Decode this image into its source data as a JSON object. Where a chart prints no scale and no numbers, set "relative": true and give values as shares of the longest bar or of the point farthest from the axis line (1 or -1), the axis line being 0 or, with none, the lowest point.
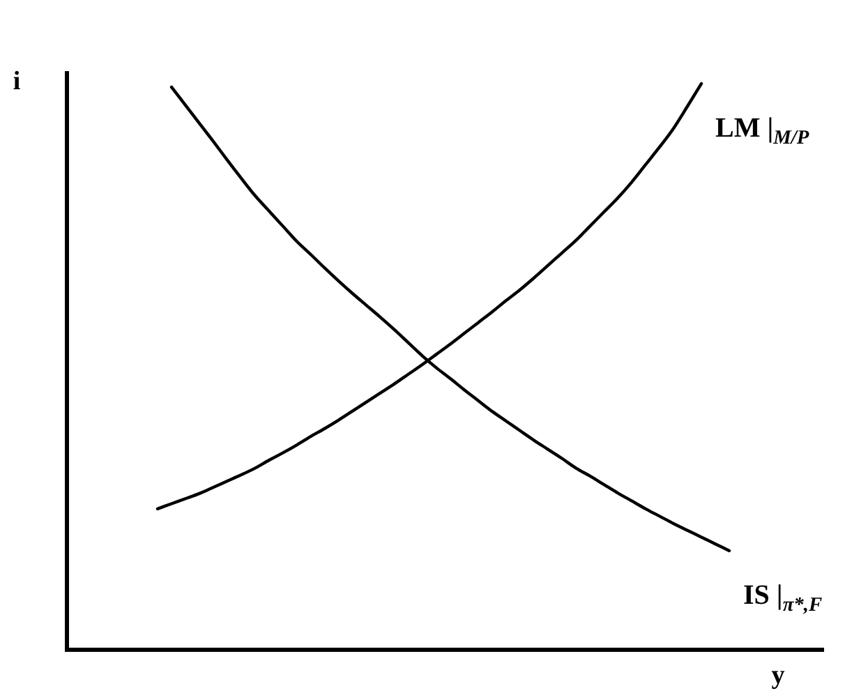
{
  "chart_data": {
    "type": "line",
    "relative": true,
    "xlabel": "y",
    "ylabel": "i",
    "categories": [
      null,
      null,
      null,
      null,
      null,
      null,
      null,
      null,
      null,
      null,
      null,
      null,
      null,
      null,
      null,
      null,
      null,
      null,
      null,
      null,
      null,
      null,
      null,
      null,
      null,
      null,
      null,
      null,
      null,
      null,
      null,
      null,
      null,
      null,
      null,
      null,
      null,
      null,
      null,
      null,
      null,
      null
    ],
    "series": [
      {
        "name": "LM |$_{M/P}$",
        "color": "#000000",
        "values": [
          0.249,
          0.258,
          0.267,
          0.276,
          0.287,
          0.298,
          0.309,
          0.321,
          0.335,
          0.348,
          0.362,
          0.377,
          0.391,
          0.406,
          0.422,
          0.438,
          0.454,
          0.47,
          0.487,
          0.504,
          0.522,
          0.54,
          0.559,
          0.578,
          0.597,
          0.617,
          0.636,
          0.657,
          0.679,
          0.701,
          0.723,
          0.748,
          0.773,
          0.798,
          0.826,
          0.857,
          0.888,
          0.921,
          0.96,
          1,
          null,
          null
        ]
      },
      {
        "name": "IS |$_{π*,F}$",
        "color": "#000000",
        "values": [
          null,
          0.994,
          0.962,
          0.93,
          0.898,
          0.865,
          0.833,
          0.802,
          0.775,
          0.748,
          0.721,
          0.698,
          0.674,
          0.651,
          0.629,
          0.608,
          0.587,
          0.565,
          0.542,
          0.519,
          0.498,
          0.479,
          0.459,
          0.44,
          0.421,
          0.404,
          0.387,
          0.37,
          0.354,
          0.338,
          0.321,
          0.307,
          0.292,
          0.277,
          0.263,
          0.249,
          0.236,
          0.223,
          0.211,
          0.199,
          0.187,
          0.175
        ]
      }
    ]
  }
}
